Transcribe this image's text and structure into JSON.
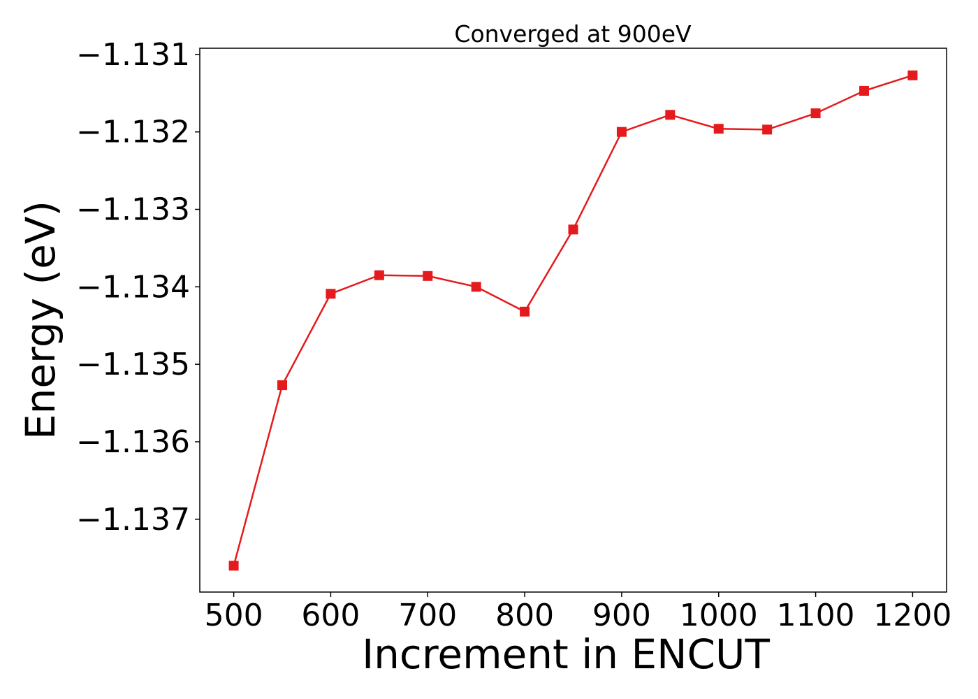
{
  "chart_data": {
    "type": "line",
    "title": "Converged at 900eV",
    "xlabel": "Increment in ENCUT",
    "ylabel": "Energy (eV)",
    "x": [
      500,
      550,
      600,
      650,
      700,
      750,
      800,
      850,
      900,
      950,
      1000,
      1050,
      1100,
      1150,
      1200
    ],
    "series": [
      {
        "values": [
          -1.1376,
          -1.13527,
          -1.13409,
          -1.13385,
          -1.13386,
          -1.134,
          -1.13432,
          -1.13326,
          -1.132,
          -1.13178,
          -1.13196,
          -1.13197,
          -1.13176,
          -1.13147,
          -1.13127
        ],
        "color": "#e41a1c",
        "marker": "square"
      }
    ],
    "xlim": [
      465,
      1235
    ],
    "ylim": [
      -1.13794,
      -1.13092
    ],
    "xticks": [
      500,
      600,
      700,
      800,
      900,
      1000,
      1100,
      1200
    ],
    "xtick_labels": [
      "500",
      "600",
      "700",
      "800",
      "900",
      "1000",
      "1100",
      "1200"
    ],
    "yticks": [
      -1.131,
      -1.132,
      -1.133,
      -1.134,
      -1.135,
      -1.136,
      -1.137
    ],
    "ytick_labels": [
      "−1.131",
      "−1.132",
      "−1.133",
      "−1.134",
      "−1.135",
      "−1.136",
      "−1.137"
    ],
    "grid": false,
    "legend": "none"
  }
}
